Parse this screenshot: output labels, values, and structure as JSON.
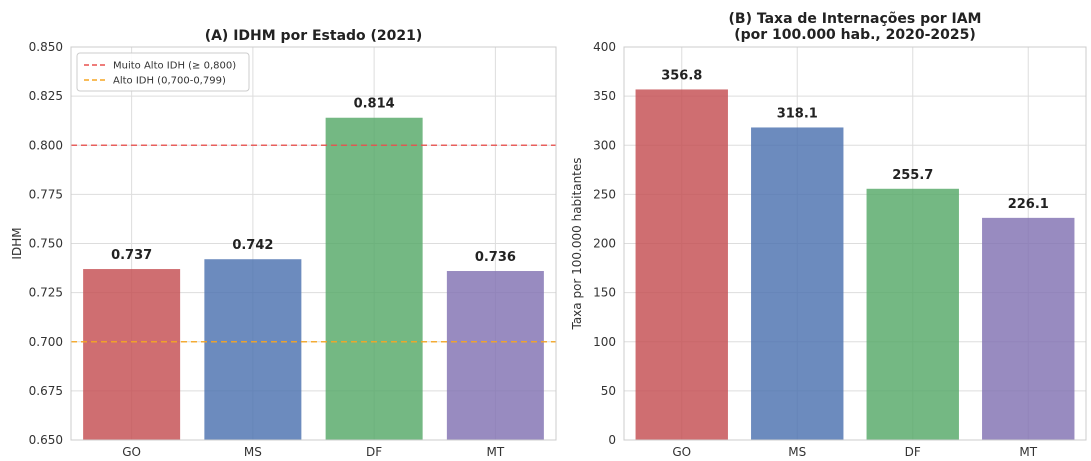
{
  "chart_data": [
    {
      "type": "bar",
      "title": "(A) IDHM por Estado (2021)",
      "xlabel": "",
      "ylabel": "IDHM",
      "ylim": [
        0.65,
        0.85
      ],
      "yticks": [
        "0.650",
        "0.675",
        "0.700",
        "0.725",
        "0.750",
        "0.775",
        "0.800",
        "0.825",
        "0.850"
      ],
      "categories": [
        "GO",
        "MS",
        "DF",
        "MT"
      ],
      "values": [
        0.737,
        0.742,
        0.814,
        0.736
      ],
      "value_labels": [
        "0.737",
        "0.742",
        "0.814",
        "0.736"
      ],
      "colors": [
        "#c44e52",
        "#4c72b0",
        "#55a868",
        "#8172b2"
      ],
      "reference_lines": [
        {
          "value": 0.8,
          "label": "Muito Alto IDH (≥ 0,800)",
          "color": "#e8514f"
        },
        {
          "value": 0.7,
          "label": "Alto IDH (0,700-0,799)",
          "color": "#f5a623"
        }
      ],
      "legend_position": "top-left",
      "grid": true
    },
    {
      "type": "bar",
      "title": "(B) Taxa de Internações por IAM",
      "subtitle": "(por 100.000 hab., 2020-2025)",
      "xlabel": "",
      "ylabel": "Taxa por 100.000 habitantes",
      "ylim": [
        0,
        400
      ],
      "yticks": [
        "0",
        "50",
        "100",
        "150",
        "200",
        "250",
        "300",
        "350",
        "400"
      ],
      "categories": [
        "GO",
        "MS",
        "DF",
        "MT"
      ],
      "values": [
        356.8,
        318.1,
        255.7,
        226.1
      ],
      "value_labels": [
        "356.8",
        "318.1",
        "255.7",
        "226.1"
      ],
      "colors": [
        "#c44e52",
        "#4c72b0",
        "#55a868",
        "#8172b2"
      ],
      "grid": true
    }
  ]
}
